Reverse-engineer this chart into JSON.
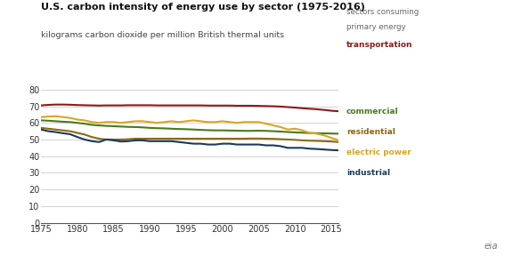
{
  "title": "U.S. carbon intensity of energy use by sector (1975-2016)",
  "subtitle": "kilograms carbon dioxide per million British thermal units",
  "years": [
    1975,
    1976,
    1977,
    1978,
    1979,
    1980,
    1981,
    1982,
    1983,
    1984,
    1985,
    1986,
    1987,
    1988,
    1989,
    1990,
    1991,
    1992,
    1993,
    1994,
    1995,
    1996,
    1997,
    1998,
    1999,
    2000,
    2001,
    2002,
    2003,
    2004,
    2005,
    2006,
    2007,
    2008,
    2009,
    2010,
    2011,
    2012,
    2013,
    2014,
    2015,
    2016
  ],
  "transportation": [
    70.5,
    70.8,
    71.0,
    71.0,
    70.9,
    70.7,
    70.6,
    70.5,
    70.4,
    70.5,
    70.5,
    70.5,
    70.6,
    70.6,
    70.6,
    70.6,
    70.5,
    70.5,
    70.5,
    70.5,
    70.5,
    70.5,
    70.5,
    70.4,
    70.4,
    70.4,
    70.4,
    70.3,
    70.3,
    70.3,
    70.2,
    70.1,
    70.0,
    69.8,
    69.5,
    69.2,
    68.8,
    68.5,
    68.2,
    67.8,
    67.3,
    67.0
  ],
  "commercial": [
    61.5,
    61.3,
    61.0,
    60.7,
    60.5,
    60.0,
    59.5,
    58.8,
    58.5,
    58.2,
    58.0,
    57.8,
    57.6,
    57.5,
    57.3,
    57.0,
    56.8,
    56.7,
    56.5,
    56.3,
    56.2,
    56.0,
    55.8,
    55.6,
    55.5,
    55.5,
    55.4,
    55.3,
    55.2,
    55.2,
    55.3,
    55.2,
    55.0,
    54.8,
    54.5,
    54.3,
    54.1,
    53.9,
    53.8,
    53.7,
    53.6,
    53.5
  ],
  "residential": [
    57.0,
    56.5,
    56.0,
    55.5,
    55.0,
    54.0,
    53.0,
    51.5,
    50.5,
    50.0,
    50.0,
    50.0,
    50.2,
    50.5,
    50.5,
    50.5,
    50.5,
    50.5,
    50.5,
    50.5,
    50.5,
    50.5,
    50.5,
    50.5,
    50.5,
    50.5,
    50.5,
    50.5,
    50.5,
    50.6,
    50.6,
    50.5,
    50.4,
    50.2,
    50.0,
    49.8,
    49.5,
    49.3,
    49.2,
    49.0,
    48.8,
    48.5
  ],
  "electric_power": [
    63.5,
    63.8,
    64.0,
    63.5,
    63.0,
    62.0,
    61.5,
    60.5,
    60.0,
    60.5,
    60.5,
    60.0,
    60.5,
    61.0,
    61.0,
    60.5,
    60.0,
    60.5,
    61.0,
    60.5,
    61.0,
    61.5,
    61.0,
    60.5,
    60.5,
    61.0,
    60.5,
    60.0,
    60.5,
    60.5,
    60.5,
    59.5,
    58.5,
    57.5,
    56.0,
    56.5,
    55.5,
    54.0,
    53.5,
    52.5,
    51.0,
    49.5
  ],
  "industrial": [
    56.0,
    55.0,
    54.5,
    53.8,
    53.2,
    51.5,
    50.0,
    49.0,
    48.5,
    50.0,
    49.5,
    48.8,
    49.0,
    49.5,
    49.5,
    49.0,
    49.0,
    49.0,
    49.0,
    48.5,
    48.0,
    47.5,
    47.5,
    47.0,
    47.0,
    47.5,
    47.5,
    47.0,
    47.0,
    47.0,
    47.0,
    46.5,
    46.5,
    46.0,
    45.0,
    45.0,
    45.0,
    44.5,
    44.3,
    44.0,
    43.7,
    43.5
  ],
  "colors": {
    "transportation": "#8B1A1A",
    "commercial": "#4a7a1e",
    "residential": "#8B6914",
    "electric_power": "#DAA520",
    "industrial": "#1a3a5c"
  },
  "annotation_gray": "#666666",
  "xlim": [
    1975,
    2016
  ],
  "ylim": [
    0,
    80
  ],
  "yticks": [
    0,
    10,
    20,
    30,
    40,
    50,
    60,
    70,
    80
  ],
  "xticks": [
    1975,
    1980,
    1985,
    1990,
    1995,
    2000,
    2005,
    2010,
    2015
  ],
  "background_color": "#ffffff",
  "grid_color": "#cccccc",
  "linewidth": 1.5
}
